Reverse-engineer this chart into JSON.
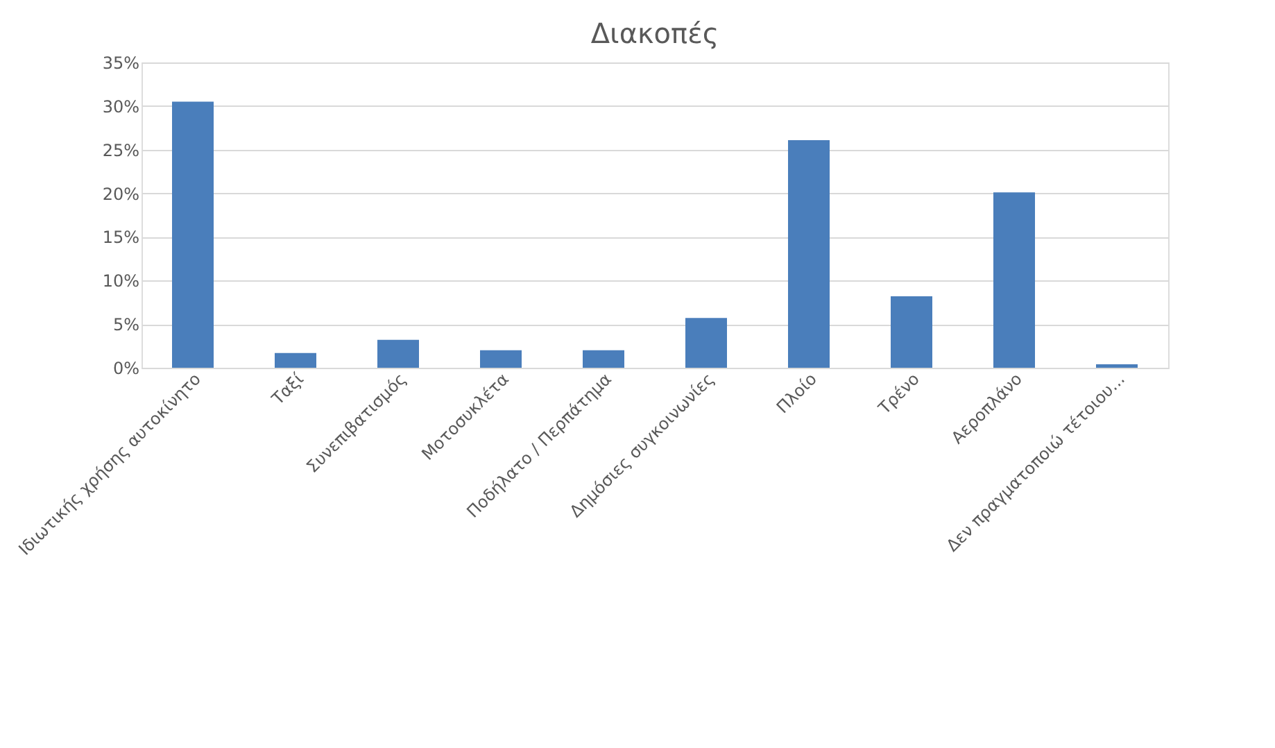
{
  "chart_data": {
    "type": "bar",
    "title": "Διακοπές",
    "categories": [
      "Ιδιωτικής χρήσης αυτοκίνητο",
      "Ταξί",
      "Συνεπιβατισμός",
      "Μοτοσυκλέτα",
      "Ποδήλατο / Περπάτημα",
      "Δημόσιες συγκοινωνίες",
      "Πλοίο",
      "Τρένο",
      "Αεροπλάνο",
      "Δεν πραγματοποιώ τέτοιου..."
    ],
    "values": [
      30.5,
      1.7,
      3.2,
      2.0,
      2.0,
      5.7,
      26.1,
      8.2,
      20.1,
      0.4
    ],
    "color": "#4a7ebb",
    "ylim": [
      0,
      35
    ],
    "yticks": [
      {
        "value": 0,
        "label": "0%"
      },
      {
        "value": 5,
        "label": "5%"
      },
      {
        "value": 10,
        "label": "10%"
      },
      {
        "value": 15,
        "label": "15%"
      },
      {
        "value": 20,
        "label": "20%"
      },
      {
        "value": 25,
        "label": "25%"
      },
      {
        "value": 30,
        "label": "30%"
      },
      {
        "value": 35,
        "label": "35%"
      }
    ],
    "grid": "y"
  }
}
